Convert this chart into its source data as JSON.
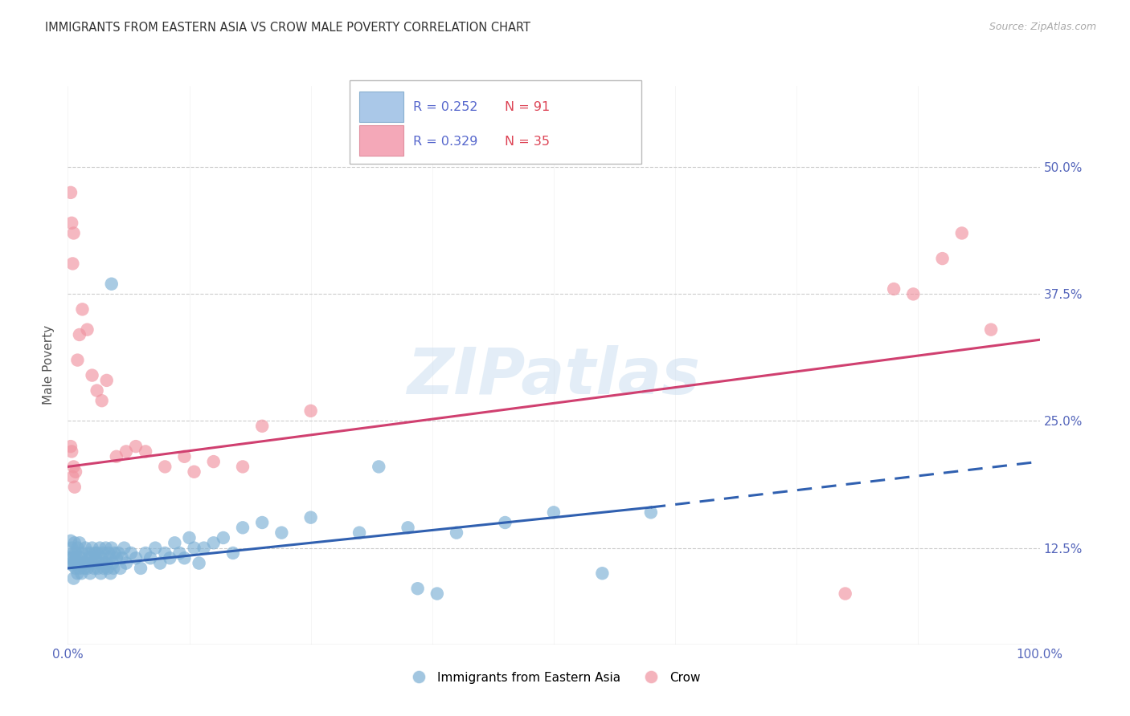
{
  "title": "IMMIGRANTS FROM EASTERN ASIA VS CROW MALE POVERTY CORRELATION CHART",
  "source": "Source: ZipAtlas.com",
  "ylabel": "Male Poverty",
  "watermark": "ZIPatlas",
  "series1_color": "#7bafd4",
  "series2_color": "#f093a0",
  "trendline1_color": "#3060b0",
  "trendline2_color": "#d04070",
  "background_color": "#ffffff",
  "grid_color": "#cccccc",
  "legend1_face": "#aac8e8",
  "legend2_face": "#f4a8b8",
  "blue_scatter": [
    [
      0.2,
      11.5
    ],
    [
      0.3,
      13.2
    ],
    [
      0.4,
      11.0
    ],
    [
      0.4,
      12.5
    ],
    [
      0.5,
      10.8
    ],
    [
      0.5,
      11.5
    ],
    [
      0.6,
      9.5
    ],
    [
      0.6,
      12.0
    ],
    [
      0.7,
      11.0
    ],
    [
      0.7,
      13.0
    ],
    [
      0.8,
      10.5
    ],
    [
      0.8,
      12.0
    ],
    [
      0.9,
      11.5
    ],
    [
      1.0,
      10.0
    ],
    [
      1.0,
      12.5
    ],
    [
      1.1,
      11.0
    ],
    [
      1.2,
      10.5
    ],
    [
      1.2,
      13.0
    ],
    [
      1.3,
      11.5
    ],
    [
      1.4,
      10.0
    ],
    [
      1.5,
      12.0
    ],
    [
      1.6,
      11.0
    ],
    [
      1.7,
      10.5
    ],
    [
      1.8,
      12.5
    ],
    [
      1.9,
      11.0
    ],
    [
      2.0,
      10.5
    ],
    [
      2.1,
      11.5
    ],
    [
      2.2,
      12.0
    ],
    [
      2.3,
      10.0
    ],
    [
      2.4,
      11.5
    ],
    [
      2.5,
      12.5
    ],
    [
      2.6,
      11.0
    ],
    [
      2.7,
      10.5
    ],
    [
      2.8,
      12.0
    ],
    [
      2.9,
      11.5
    ],
    [
      3.0,
      12.0
    ],
    [
      3.1,
      10.5
    ],
    [
      3.2,
      11.0
    ],
    [
      3.3,
      12.5
    ],
    [
      3.4,
      10.0
    ],
    [
      3.5,
      11.5
    ],
    [
      3.6,
      12.0
    ],
    [
      3.7,
      10.5
    ],
    [
      3.8,
      11.0
    ],
    [
      3.9,
      12.5
    ],
    [
      4.0,
      11.0
    ],
    [
      4.1,
      10.5
    ],
    [
      4.2,
      12.0
    ],
    [
      4.3,
      11.5
    ],
    [
      4.4,
      10.0
    ],
    [
      4.5,
      12.5
    ],
    [
      4.6,
      11.0
    ],
    [
      4.7,
      10.5
    ],
    [
      4.8,
      12.0
    ],
    [
      5.0,
      11.5
    ],
    [
      5.2,
      12.0
    ],
    [
      5.4,
      10.5
    ],
    [
      5.6,
      11.5
    ],
    [
      5.8,
      12.5
    ],
    [
      6.0,
      11.0
    ],
    [
      6.5,
      12.0
    ],
    [
      7.0,
      11.5
    ],
    [
      7.5,
      10.5
    ],
    [
      8.0,
      12.0
    ],
    [
      8.5,
      11.5
    ],
    [
      9.0,
      12.5
    ],
    [
      9.5,
      11.0
    ],
    [
      10.0,
      12.0
    ],
    [
      10.5,
      11.5
    ],
    [
      11.0,
      13.0
    ],
    [
      11.5,
      12.0
    ],
    [
      12.0,
      11.5
    ],
    [
      12.5,
      13.5
    ],
    [
      13.0,
      12.5
    ],
    [
      13.5,
      11.0
    ],
    [
      14.0,
      12.5
    ],
    [
      15.0,
      13.0
    ],
    [
      16.0,
      13.5
    ],
    [
      17.0,
      12.0
    ],
    [
      18.0,
      14.5
    ],
    [
      20.0,
      15.0
    ],
    [
      22.0,
      14.0
    ],
    [
      25.0,
      15.5
    ],
    [
      30.0,
      14.0
    ],
    [
      35.0,
      14.5
    ],
    [
      40.0,
      14.0
    ],
    [
      45.0,
      15.0
    ],
    [
      50.0,
      16.0
    ],
    [
      55.0,
      10.0
    ],
    [
      60.0,
      16.0
    ],
    [
      4.5,
      38.5
    ],
    [
      32.0,
      20.5
    ],
    [
      36.0,
      8.5
    ],
    [
      38.0,
      8.0
    ]
  ],
  "pink_scatter": [
    [
      0.3,
      47.5
    ],
    [
      0.4,
      44.5
    ],
    [
      0.5,
      40.5
    ],
    [
      0.6,
      43.5
    ],
    [
      0.5,
      19.5
    ],
    [
      0.6,
      20.5
    ],
    [
      0.7,
      18.5
    ],
    [
      0.8,
      20.0
    ],
    [
      1.0,
      31.0
    ],
    [
      1.2,
      33.5
    ],
    [
      1.5,
      36.0
    ],
    [
      2.0,
      34.0
    ],
    [
      2.5,
      29.5
    ],
    [
      3.0,
      28.0
    ],
    [
      3.5,
      27.0
    ],
    [
      4.0,
      29.0
    ],
    [
      5.0,
      21.5
    ],
    [
      6.0,
      22.0
    ],
    [
      7.0,
      22.5
    ],
    [
      8.0,
      22.0
    ],
    [
      10.0,
      20.5
    ],
    [
      12.0,
      21.5
    ],
    [
      13.0,
      20.0
    ],
    [
      15.0,
      21.0
    ],
    [
      18.0,
      20.5
    ],
    [
      20.0,
      24.5
    ],
    [
      0.3,
      22.5
    ],
    [
      0.4,
      22.0
    ],
    [
      85.0,
      38.0
    ],
    [
      87.0,
      37.5
    ],
    [
      90.0,
      41.0
    ],
    [
      92.0,
      43.5
    ],
    [
      95.0,
      34.0
    ],
    [
      80.0,
      8.0
    ],
    [
      25.0,
      26.0
    ]
  ],
  "blue_trend": {
    "x_start": 0,
    "x_end": 60,
    "y_start": 10.5,
    "y_end": 16.5
  },
  "blue_trend_ext": {
    "x_start": 60,
    "x_end": 100,
    "y_start": 16.5,
    "y_end": 21.0
  },
  "pink_trend": {
    "x_start": 0,
    "x_end": 100,
    "y_start": 20.5,
    "y_end": 33.0
  },
  "xlim": [
    0,
    100
  ],
  "ylim": [
    3,
    58
  ],
  "y_ticks": [
    12.5,
    25.0,
    37.5,
    50.0
  ],
  "x_ticks": [
    0,
    100
  ]
}
